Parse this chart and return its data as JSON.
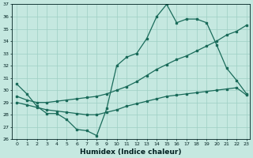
{
  "xlabel": "Humidex (Indice chaleur)",
  "xlim": [
    0,
    23
  ],
  "ylim": [
    26,
    37
  ],
  "yticks": [
    26,
    27,
    28,
    29,
    30,
    31,
    32,
    33,
    34,
    35,
    36,
    37
  ],
  "xticks": [
    0,
    1,
    2,
    3,
    4,
    5,
    6,
    7,
    8,
    9,
    10,
    11,
    12,
    13,
    14,
    15,
    16,
    17,
    18,
    19,
    20,
    21,
    22,
    23
  ],
  "bg_color": "#c5e8e0",
  "grid_color": "#9ecfc4",
  "line_color": "#1a6b5a",
  "line1_x": [
    0,
    1,
    2,
    3,
    4,
    5,
    6,
    7,
    8,
    9,
    10,
    11,
    12,
    13,
    14,
    15,
    16,
    17,
    18,
    19,
    20,
    21,
    22,
    23
  ],
  "line1_y": [
    30.5,
    29.7,
    28.7,
    28.1,
    28.1,
    27.6,
    26.8,
    26.7,
    26.3,
    28.5,
    32.0,
    32.7,
    33.0,
    34.2,
    36.0,
    37.0,
    35.5,
    35.8,
    35.8,
    35.5,
    33.7,
    31.8,
    30.8,
    29.7
  ],
  "line2_x": [
    0,
    1,
    2,
    3,
    4,
    5,
    6,
    7,
    8,
    9,
    10,
    11,
    12,
    13,
    14,
    15,
    16,
    17,
    18,
    19,
    20,
    21,
    22,
    23
  ],
  "line2_y": [
    29.5,
    29.2,
    29.0,
    29.0,
    29.1,
    29.2,
    29.3,
    29.4,
    29.5,
    29.7,
    30.0,
    30.3,
    30.7,
    31.2,
    31.7,
    32.1,
    32.5,
    32.8,
    33.2,
    33.6,
    34.0,
    34.5,
    34.8,
    35.3
  ],
  "line3_x": [
    0,
    1,
    2,
    3,
    4,
    5,
    6,
    7,
    8,
    9,
    10,
    11,
    12,
    13,
    14,
    15,
    16,
    17,
    18,
    19,
    20,
    21,
    22,
    23
  ],
  "line3_y": [
    29.0,
    28.8,
    28.6,
    28.4,
    28.3,
    28.2,
    28.1,
    28.0,
    28.0,
    28.2,
    28.4,
    28.7,
    28.9,
    29.1,
    29.3,
    29.5,
    29.6,
    29.7,
    29.8,
    29.9,
    30.0,
    30.1,
    30.2,
    29.6
  ]
}
